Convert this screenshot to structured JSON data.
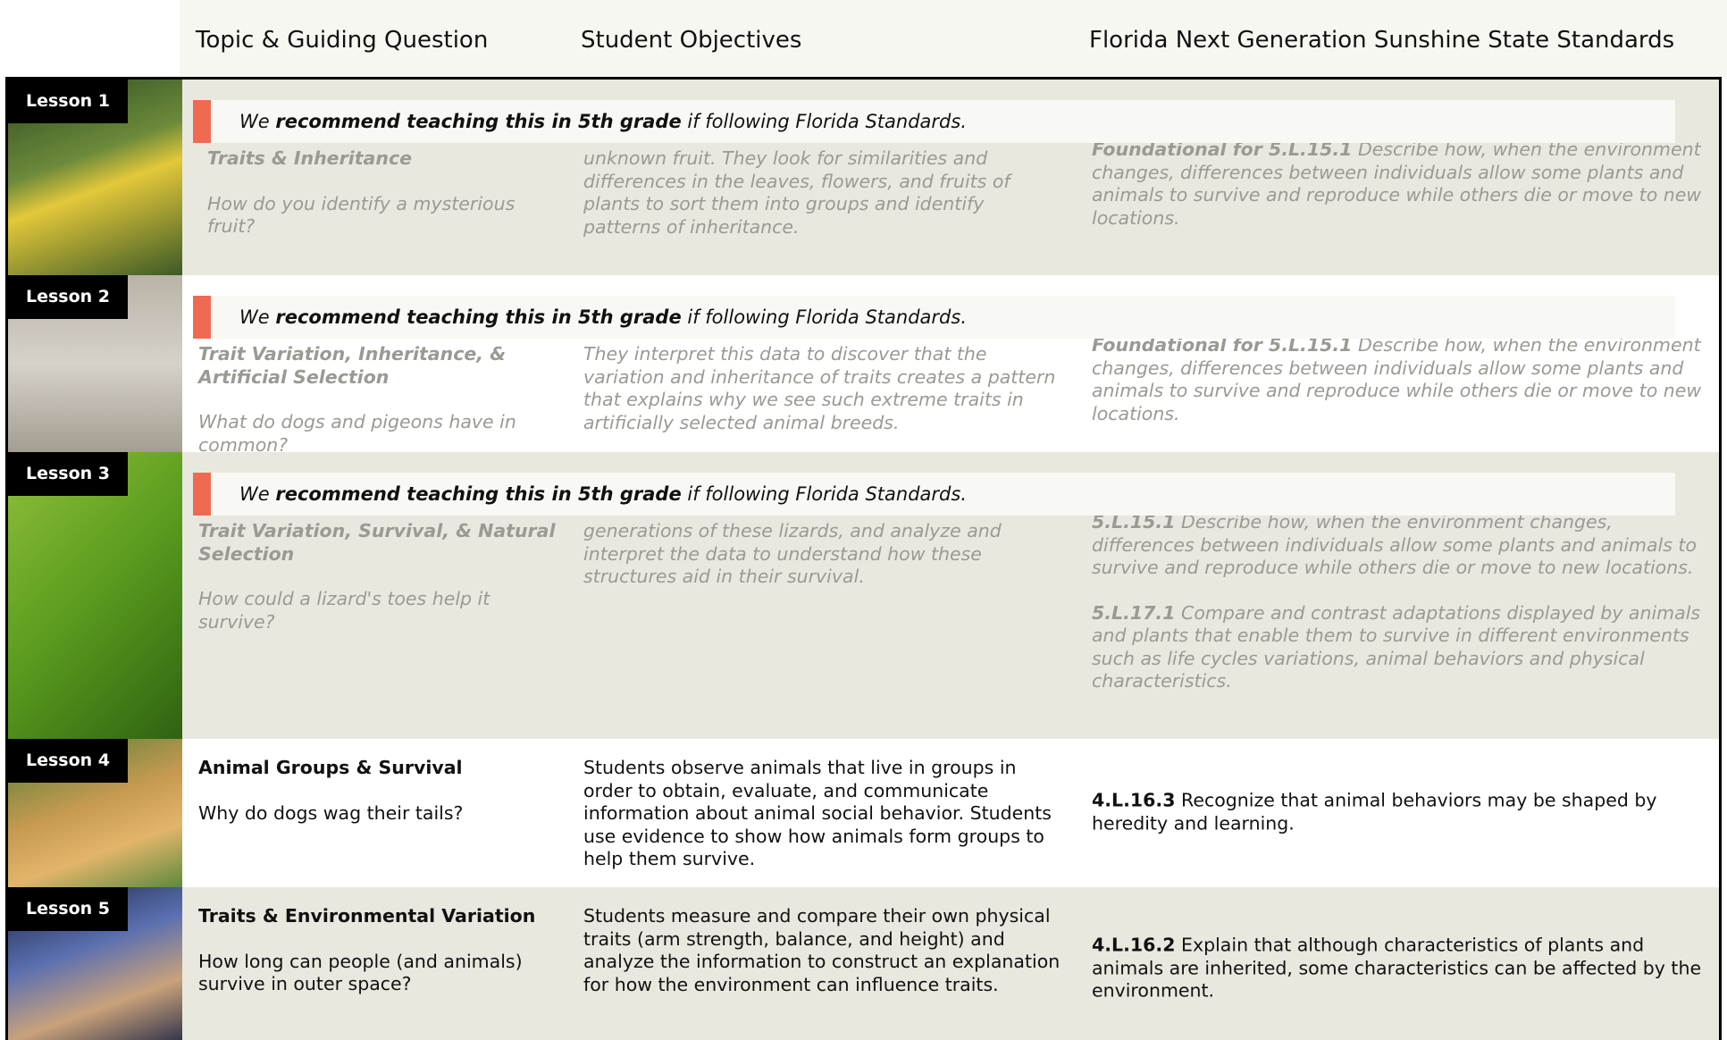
{
  "header": {
    "columns": [
      "Topic & Guiding Question",
      "Student Objectives",
      "Florida Next Generation Sunshine State Standards"
    ]
  },
  "banner": {
    "pre": "We",
    "bold": "recommend teaching this in 5th grade",
    "post": "if following Florida Standards."
  },
  "lessons": [
    {
      "label": "Lesson 1",
      "topic": "Traits & Inheritance",
      "question": "How do you identify a mysterious fruit?",
      "objectives": "unknown fruit. They look for similarities and differences in the leaves, flowers, and fruits of plants to sort them into groups and identify patterns of inheritance.",
      "standards": [
        {
          "code": "Foundational for 5.L.15.1",
          "text": "Describe how, when the environment changes, differences between individuals allow some plants and animals to survive and reproduce while others die or move to new locations."
        }
      ]
    },
    {
      "label": "Lesson 2",
      "topic": "Trait Variation, Inheritance, & Artificial Selection",
      "question": "What do dogs and pigeons have in common?",
      "objectives": "They interpret this data to discover that the variation and inheritance of traits creates a pattern that explains why we see such extreme traits in artificially selected animal breeds.",
      "standards": [
        {
          "code": "Foundational for 5.L.15.1",
          "text": "Describe how, when the environment changes, differences between individuals allow some plants and animals to survive and reproduce while others die or move to new locations."
        }
      ]
    },
    {
      "label": "Lesson 3",
      "topic": "Trait Variation, Survival, & Natural Selection",
      "question": "How could a lizard's toes help it survive?",
      "objectives": "generations of these lizards, and analyze and interpret the data to understand how these structures aid in their survival.",
      "standards": [
        {
          "code": "5.L.15.1",
          "text": "Describe how, when the environment changes, differences between individuals allow some plants and animals to survive and reproduce while others die or move to new locations."
        },
        {
          "code": "5.L.17.1",
          "text": "Compare and contrast adaptations displayed by animals and plants that enable them to survive in different environments such as life cycles variations, animal behaviors and physical characteristics."
        }
      ]
    },
    {
      "label": "Lesson 4",
      "topic": "Animal Groups & Survival",
      "question": "Why do dogs wag their tails?",
      "objectives": "Students observe animals that live in groups in order to obtain, evaluate, and communicate information about animal social behavior. Students use evidence to show how animals form groups to help them survive.",
      "standards": [
        {
          "code": "4.L.16.3",
          "text": "Recognize that animal behaviors may be shaped by heredity and learning."
        }
      ]
    },
    {
      "label": "Lesson 5",
      "topic": "Traits & Environmental Variation",
      "question": "How long can people (and animals) survive in outer space?",
      "objectives": "Students measure and compare their own physical traits (arm strength, balance, and height) and analyze the information to construct an explanation for how the environment can influence traits.",
      "standards": [
        {
          "code": "4.L.16.2",
          "text": "Explain that although characteristics of plants and animals are inherited, some characteristics can be affected by the environment."
        }
      ]
    }
  ]
}
